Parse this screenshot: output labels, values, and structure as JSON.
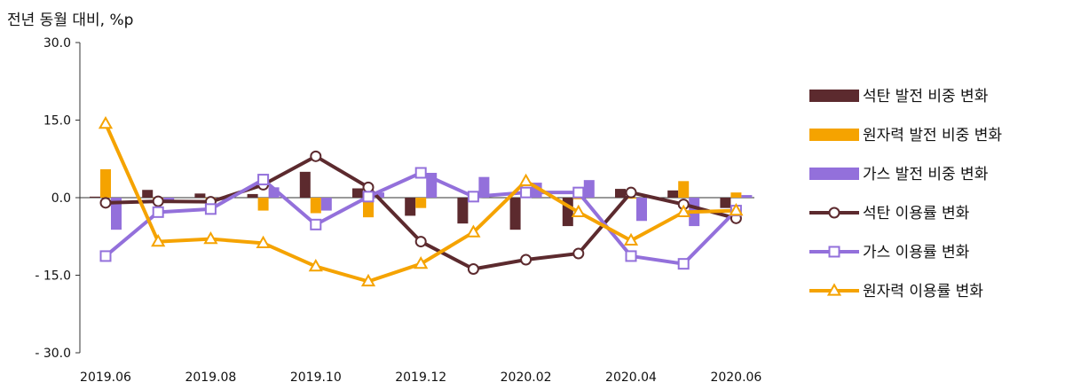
{
  "chart_data": {
    "type": "bar+line",
    "ylabel": "전년 동월 대비, %p",
    "ylim": [
      -30,
      30
    ],
    "yticks": [
      30,
      15,
      0,
      -15,
      -30
    ],
    "ytick_labels": [
      "30.0",
      "15.0",
      "0.0",
      "- 15.0",
      "- 30.0"
    ],
    "categories": [
      "2019.06",
      "2019.07",
      "2019.08",
      "2019.09",
      "2019.10",
      "2019.11",
      "2019.12",
      "2020.01",
      "2020.02",
      "2020.03",
      "2020.04",
      "2020.05",
      "2020.06"
    ],
    "xtick_labels": [
      "2019.06",
      "2019.08",
      "2019.10",
      "2019.12",
      "2020.02",
      "2020.04",
      "2020.06"
    ],
    "xtick_indices": [
      0,
      2,
      4,
      6,
      8,
      10,
      12
    ],
    "bar_series": [
      {
        "name": "석탄 발전 비중 변화",
        "color": "#5c2a2e",
        "values": [
          0.2,
          1.5,
          0.8,
          0.7,
          5.0,
          1.8,
          -3.5,
          -5.0,
          -6.2,
          -5.5,
          1.7,
          1.4,
          -2.0
        ]
      },
      {
        "name": "원자력 발전 비중 변화",
        "color": "#f5a300",
        "values": [
          5.5,
          -0.3,
          -0.2,
          -2.5,
          -3.0,
          -3.8,
          -2.0,
          -0.3,
          0.3,
          -0.3,
          -0.2,
          3.2,
          1.0
        ]
      },
      {
        "name": "가스 발전 비중 변화",
        "color": "#9370db",
        "values": [
          -6.2,
          -0.5,
          -0.5,
          2.0,
          -2.5,
          1.0,
          4.8,
          4.0,
          2.9,
          3.4,
          -4.5,
          -5.5,
          0.5
        ]
      }
    ],
    "line_series": [
      {
        "name": "석탄 이용률 변화",
        "color": "#5c2a2e",
        "marker": "circle",
        "values": [
          -1.0,
          -0.7,
          -0.8,
          2.5,
          8.0,
          2.0,
          -8.5,
          -13.8,
          -12.0,
          -10.8,
          1.0,
          -1.3,
          -4.0
        ]
      },
      {
        "name": "가스 이용률 변화",
        "color": "#9370db",
        "marker": "square",
        "values": [
          -11.3,
          -2.8,
          -2.2,
          3.5,
          -5.2,
          0.2,
          4.8,
          0.2,
          1.0,
          1.0,
          -11.3,
          -12.8,
          -2.5
        ]
      },
      {
        "name": "원자력 이용률 변화",
        "color": "#f5a300",
        "marker": "triangle",
        "values": [
          14.3,
          -8.5,
          -8.0,
          -8.8,
          -13.3,
          -16.2,
          -12.8,
          -6.7,
          3.2,
          -2.8,
          -8.3,
          -2.8,
          -2.5
        ]
      }
    ],
    "legend_position": "right",
    "grid": false
  }
}
